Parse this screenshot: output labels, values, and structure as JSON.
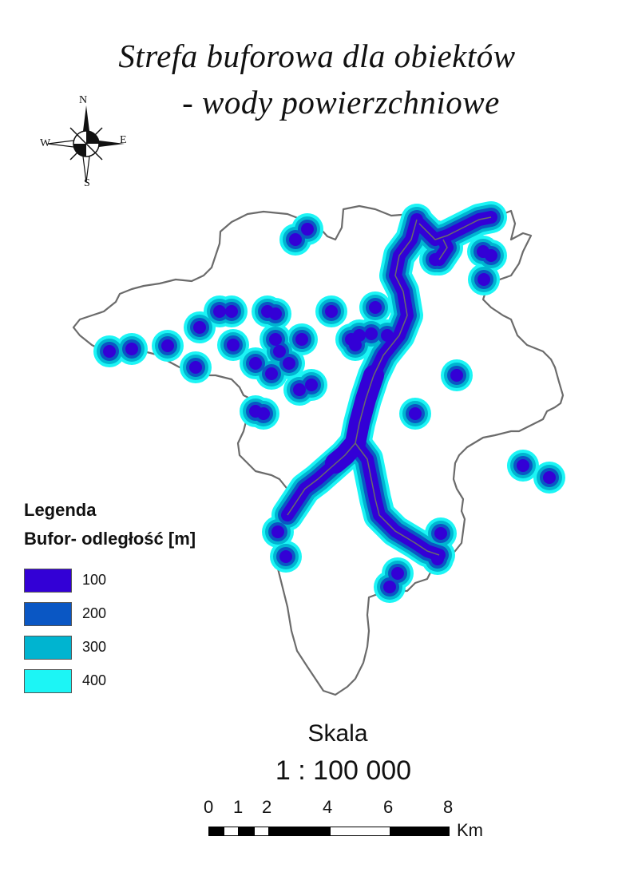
{
  "title": {
    "line1": "Strefa buforowa dla obiektów",
    "line2": "- wody powierzchniowe"
  },
  "compass": {
    "n": "N",
    "s": "S",
    "e": "E",
    "w": "W",
    "icon": "compass-rose-icon"
  },
  "legend": {
    "heading": "Legenda",
    "subheading": "Bufor- odległość [m]",
    "items": [
      {
        "label": "100",
        "color": "#3300d6"
      },
      {
        "label": "200",
        "color": "#0a57c4"
      },
      {
        "label": "300",
        "color": "#00b4d0"
      },
      {
        "label": "400",
        "color": "#1cf5f5"
      }
    ]
  },
  "scale": {
    "heading": "Skala",
    "ratio": "1 : 100 000",
    "ticks": [
      "0",
      "1",
      "2",
      "4",
      "6",
      "8"
    ],
    "unit": "Km"
  },
  "colors": {
    "outline": "#6b6b6b",
    "buffer100": "#3300d6",
    "buffer200": "#0a57c4",
    "buffer300": "#00b4d0",
    "buffer400": "#1cf5f5"
  }
}
